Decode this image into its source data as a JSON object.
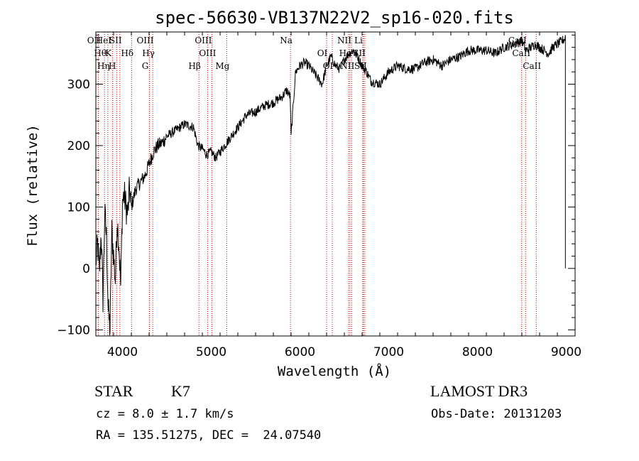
{
  "chart_data": {
    "type": "line",
    "title": "spec-56630-VB137N22V2_sp16-020.fits",
    "xlabel": "Wavelength (Å)",
    "ylabel": "Flux (relative)",
    "xlim": [
      3700,
      9100
    ],
    "ylim": [
      -110,
      385
    ],
    "x_ticks": [
      4000,
      5000,
      6000,
      7000,
      8000,
      9000
    ],
    "y_ticks": [
      -100,
      0,
      100,
      200,
      300
    ],
    "line_color": "#000000",
    "marker_color": "#cc0000",
    "series": [
      {
        "x": [
          3700,
          3720,
          3740,
          3760,
          3780,
          3800,
          3820,
          3840,
          3860,
          3880,
          3900,
          3920,
          3940,
          3960,
          3980,
          4000,
          4020,
          4040,
          4060,
          4080,
          4100,
          4150,
          4200,
          4250,
          4300,
          4350,
          4400,
          4450,
          4500,
          4600,
          4700,
          4800,
          4850,
          4900,
          4950,
          5000,
          5050,
          5100,
          5150,
          5200,
          5300,
          5400,
          5500,
          5600,
          5700,
          5800,
          5850,
          5890,
          5900,
          5950,
          6000,
          6050,
          6100,
          6150,
          6200,
          6250,
          6300,
          6350,
          6400,
          6450,
          6500,
          6550,
          6600,
          6650,
          6700,
          6750,
          6800,
          6900,
          7000,
          7100,
          7200,
          7300,
          7400,
          7500,
          7600,
          7700,
          7800,
          7900,
          8000,
          8100,
          8200,
          8300,
          8400,
          8500,
          8550,
          8600,
          8650,
          8700,
          8750,
          8800,
          8850,
          8900,
          8950,
          8990
        ],
        "y": [
          10,
          40,
          -10,
          60,
          -50,
          90,
          50,
          -70,
          -100,
          60,
          20,
          -20,
          80,
          40,
          -30,
          110,
          120,
          100,
          90,
          130,
          100,
          130,
          140,
          150,
          170,
          190,
          200,
          205,
          215,
          225,
          235,
          230,
          200,
          195,
          185,
          190,
          180,
          190,
          200,
          210,
          230,
          250,
          255,
          265,
          270,
          280,
          290,
          280,
          215,
          320,
          330,
          335,
          330,
          320,
          310,
          300,
          330,
          345,
          330,
          325,
          340,
          350,
          355,
          345,
          330,
          320,
          305,
          300,
          320,
          330,
          325,
          325,
          335,
          340,
          330,
          340,
          345,
          355,
          355,
          355,
          350,
          360,
          365,
          370,
          355,
          360,
          365,
          360,
          355,
          350,
          360,
          365,
          370,
          375
        ]
      }
    ],
    "line_markers": [
      {
        "wl": 3727,
        "labels": [
          "OII"
        ]
      },
      {
        "wl": 3798,
        "labels": [
          "Hθ"
        ]
      },
      {
        "wl": 3835,
        "labels": [
          "Hη",
          "HeI"
        ]
      },
      {
        "wl": 3889,
        "labels": [
          "K"
        ]
      },
      {
        "wl": 3934,
        "labels": [
          "H"
        ]
      },
      {
        "wl": 3970,
        "labels": [
          "SII"
        ]
      },
      {
        "wl": 4102,
        "labels": [
          "Hδ"
        ]
      },
      {
        "wl": 4304,
        "labels": [
          "G",
          "OIII"
        ]
      },
      {
        "wl": 4341,
        "labels": [
          "Hγ"
        ]
      },
      {
        "wl": 4861,
        "labels": [
          "Hβ"
        ]
      },
      {
        "wl": 4959,
        "labels": [
          "OIII"
        ]
      },
      {
        "wl": 5007,
        "labels": [
          "OIII"
        ]
      },
      {
        "wl": 5175,
        "labels": [
          "Mg"
        ]
      },
      {
        "wl": 5893,
        "labels": [
          "Na"
        ]
      },
      {
        "wl": 6300,
        "labels": [
          "OI"
        ]
      },
      {
        "wl": 6364,
        "labels": [
          "OI"
        ]
      },
      {
        "wl": 6548,
        "labels": [
          "NII"
        ]
      },
      {
        "wl": 6563,
        "labels": [
          "Hα"
        ]
      },
      {
        "wl": 6583,
        "labels": [
          "NII"
        ]
      },
      {
        "wl": 6707,
        "labels": [
          "Li"
        ]
      },
      {
        "wl": 6716,
        "labels": [
          "SII"
        ]
      },
      {
        "wl": 6731,
        "labels": [
          "SII"
        ]
      },
      {
        "wl": 8498,
        "labels": [
          "CaII"
        ]
      },
      {
        "wl": 8542,
        "labels": [
          "CaII"
        ]
      },
      {
        "wl": 8662,
        "labels": [
          "CaII"
        ]
      }
    ]
  },
  "info": {
    "class_label": "STAR",
    "subclass_label": "K7",
    "survey": "LAMOST DR3",
    "redshift_text": "cz = 8.0 ± 1.7 km/s",
    "obs_date_text": "Obs-Date: 20131203",
    "coords_text": "RA = 135.51275, DEC =  24.07540"
  }
}
